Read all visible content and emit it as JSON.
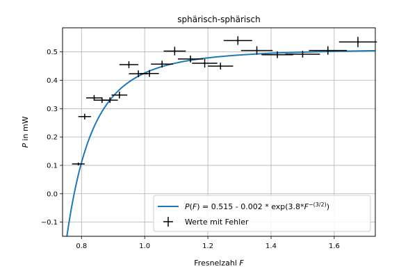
{
  "chart_data": {
    "type": "scatter",
    "title": "sphärisch-sphärisch",
    "xlabel": "Fresnelzahl F",
    "ylabel": "P in mW",
    "xlim": [
      0.74,
      1.73
    ],
    "ylim": [
      -0.15,
      0.585
    ],
    "xticks": [
      0.8,
      1.0,
      1.2,
      1.4,
      1.6
    ],
    "xtick_labels": [
      "0.8",
      "1.0",
      "1.2",
      "1.4",
      "1.6"
    ],
    "yticks": [
      -0.1,
      0.0,
      0.1,
      0.2,
      0.3,
      0.4,
      0.5
    ],
    "ytick_labels": [
      "−0.1",
      "0.0",
      "0.1",
      "0.2",
      "0.3",
      "0.4",
      "0.5"
    ],
    "grid": true,
    "legend_position": "lower-right",
    "fit": {
      "name": "P(F) = 0.515 - 0.002 * exp(3.8*F^-(3/2))",
      "color": "#1f77b4",
      "a": 0.515,
      "b": 0.002,
      "c": 3.8
    },
    "series": [
      {
        "name": "Werte mit Fehler",
        "color": "#000000",
        "points": [
          {
            "x": 0.79,
            "y": 0.105,
            "xerr": 0.02,
            "yerr": 0.005
          },
          {
            "x": 0.81,
            "y": 0.272,
            "xerr": 0.02,
            "yerr": 0.01
          },
          {
            "x": 0.84,
            "y": 0.338,
            "xerr": 0.025,
            "yerr": 0.01
          },
          {
            "x": 0.865,
            "y": 0.33,
            "xerr": 0.025,
            "yerr": 0.01
          },
          {
            "x": 0.89,
            "y": 0.33,
            "xerr": 0.025,
            "yerr": 0.01
          },
          {
            "x": 0.92,
            "y": 0.348,
            "xerr": 0.025,
            "yerr": 0.012
          },
          {
            "x": 0.95,
            "y": 0.455,
            "xerr": 0.03,
            "yerr": 0.012
          },
          {
            "x": 0.98,
            "y": 0.423,
            "xerr": 0.03,
            "yerr": 0.012
          },
          {
            "x": 1.015,
            "y": 0.424,
            "xerr": 0.03,
            "yerr": 0.012
          },
          {
            "x": 1.055,
            "y": 0.457,
            "xerr": 0.035,
            "yerr": 0.012
          },
          {
            "x": 1.095,
            "y": 0.503,
            "xerr": 0.035,
            "yerr": 0.015
          },
          {
            "x": 1.145,
            "y": 0.475,
            "xerr": 0.04,
            "yerr": 0.012
          },
          {
            "x": 1.19,
            "y": 0.46,
            "xerr": 0.04,
            "yerr": 0.015
          },
          {
            "x": 1.24,
            "y": 0.45,
            "xerr": 0.04,
            "yerr": 0.012
          },
          {
            "x": 1.295,
            "y": 0.54,
            "xerr": 0.045,
            "yerr": 0.015
          },
          {
            "x": 1.355,
            "y": 0.505,
            "xerr": 0.05,
            "yerr": 0.015
          },
          {
            "x": 1.42,
            "y": 0.49,
            "xerr": 0.05,
            "yerr": 0.012
          },
          {
            "x": 1.5,
            "y": 0.492,
            "xerr": 0.055,
            "yerr": 0.012
          },
          {
            "x": 1.58,
            "y": 0.505,
            "xerr": 0.06,
            "yerr": 0.015
          },
          {
            "x": 1.675,
            "y": 0.535,
            "xerr": 0.06,
            "yerr": 0.018
          }
        ]
      }
    ]
  }
}
